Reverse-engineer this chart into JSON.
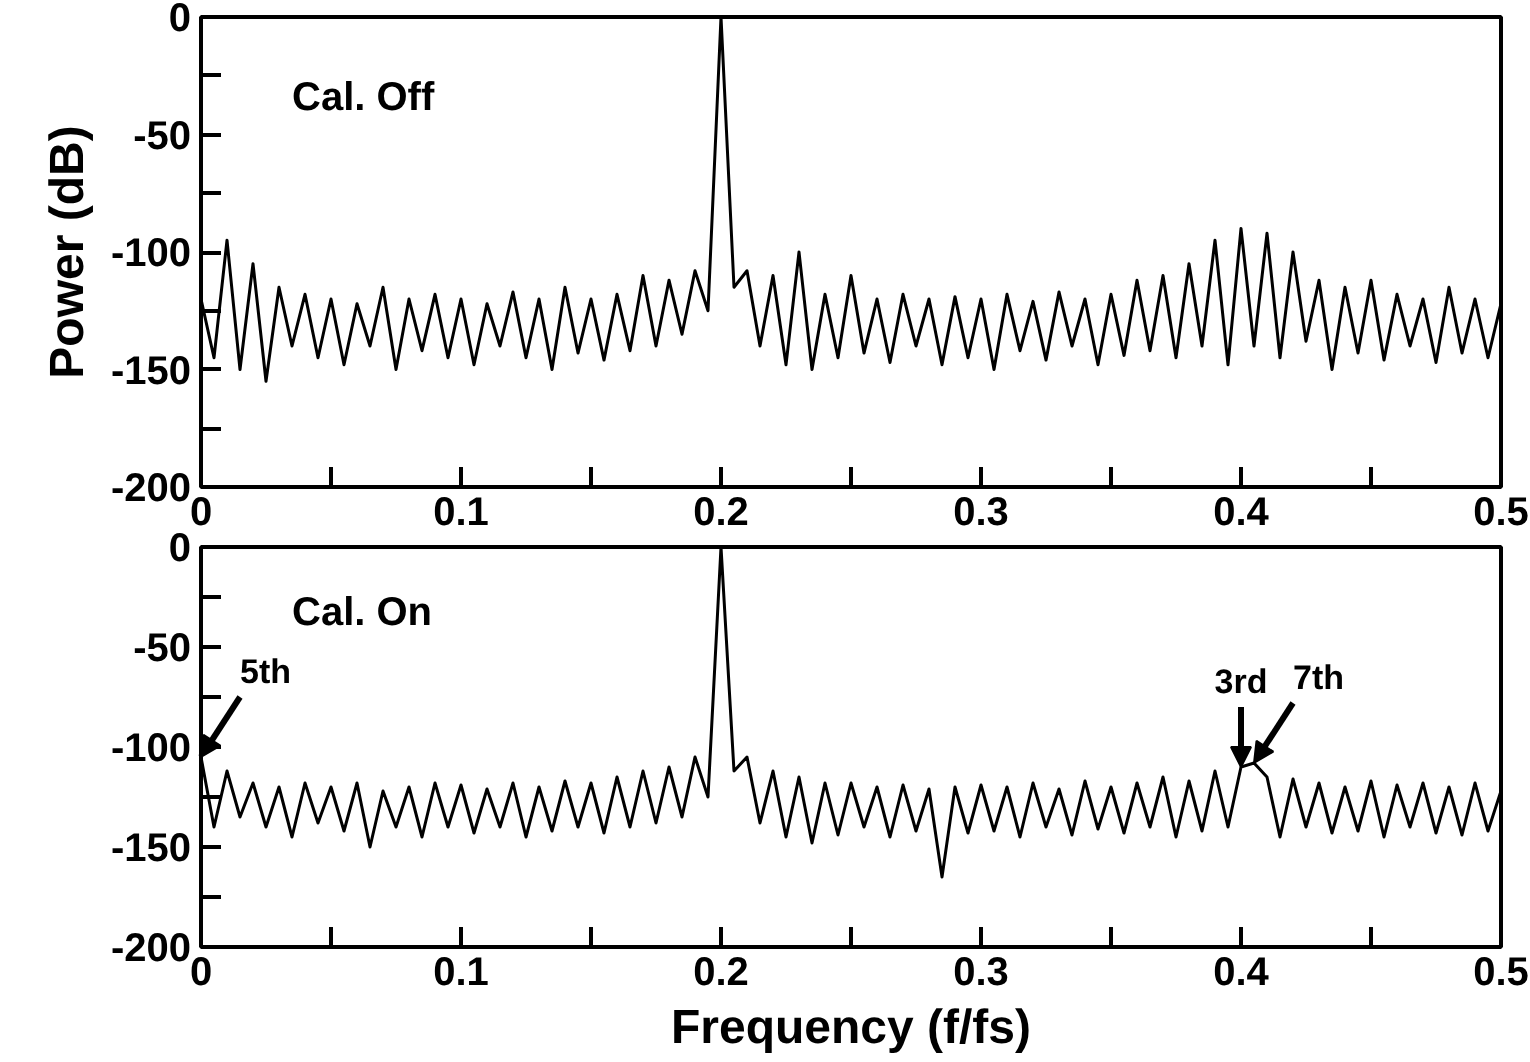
{
  "chart_data": [
    {
      "type": "line",
      "ylabel": "Power (dB)",
      "annotations": [
        "Cal. Off"
      ],
      "xlim": [
        0,
        0.5
      ],
      "ylim": [
        -200,
        0
      ],
      "xticks": [
        0,
        {
          "value": 0.05,
          "label": null
        },
        0.1,
        {
          "value": 0.15,
          "label": null
        },
        0.2,
        {
          "value": 0.25,
          "label": null
        },
        0.3,
        {
          "value": 0.35,
          "label": null
        },
        0.4,
        {
          "value": 0.45,
          "label": null
        },
        0.5
      ],
      "yticks": [
        -200,
        {
          "value": -175,
          "label": null
        },
        -150,
        {
          "value": -125,
          "label": null
        },
        -100,
        {
          "value": -75,
          "label": null
        },
        -50,
        {
          "value": -25,
          "label": null
        },
        0
      ],
      "grid": false,
      "marker": "none",
      "line_style": "solid",
      "series": [
        {
          "color": "#000000",
          "x": [
            0,
            0.005,
            0.01,
            0.015,
            0.02,
            0.025,
            0.03,
            0.035,
            0.04,
            0.045,
            0.05,
            0.055,
            0.06,
            0.065,
            0.07,
            0.075,
            0.08,
            0.085,
            0.09,
            0.095,
            0.1,
            0.105,
            0.11,
            0.115,
            0.12,
            0.125,
            0.13,
            0.135,
            0.14,
            0.145,
            0.15,
            0.155,
            0.16,
            0.165,
            0.17,
            0.175,
            0.18,
            0.185,
            0.19,
            0.195,
            0.2,
            0.205,
            0.21,
            0.215,
            0.22,
            0.225,
            0.23,
            0.235,
            0.24,
            0.245,
            0.25,
            0.255,
            0.26,
            0.265,
            0.27,
            0.275,
            0.28,
            0.285,
            0.29,
            0.295,
            0.3,
            0.305,
            0.31,
            0.315,
            0.32,
            0.325,
            0.33,
            0.335,
            0.34,
            0.345,
            0.35,
            0.355,
            0.36,
            0.365,
            0.37,
            0.375,
            0.38,
            0.385,
            0.39,
            0.395,
            0.4,
            0.405,
            0.41,
            0.415,
            0.42,
            0.425,
            0.43,
            0.435,
            0.44,
            0.445,
            0.45,
            0.455,
            0.46,
            0.465,
            0.47,
            0.475,
            0.48,
            0.485,
            0.49,
            0.495,
            0.5
          ],
          "values": [
            -120,
            -145,
            -95,
            -150,
            -105,
            -155,
            -115,
            -140,
            -118,
            -145,
            -120,
            -148,
            -122,
            -140,
            -115,
            -150,
            -120,
            -142,
            -118,
            -145,
            -120,
            -148,
            -122,
            -140,
            -117,
            -145,
            -120,
            -150,
            -115,
            -143,
            -120,
            -146,
            -118,
            -142,
            -110,
            -140,
            -112,
            -135,
            -108,
            -125,
            0,
            -115,
            -108,
            -140,
            -110,
            -148,
            -100,
            -150,
            -118,
            -145,
            -110,
            -143,
            -120,
            -147,
            -118,
            -140,
            -120,
            -148,
            -119,
            -145,
            -120,
            -150,
            -118,
            -142,
            -121,
            -146,
            -117,
            -140,
            -120,
            -148,
            -118,
            -144,
            -112,
            -142,
            -110,
            -145,
            -105,
            -140,
            -95,
            -148,
            -90,
            -140,
            -92,
            -145,
            -100,
            -138,
            -112,
            -150,
            -115,
            -143,
            -112,
            -146,
            -118,
            -140,
            -120,
            -147,
            -115,
            -143,
            -120,
            -145,
            -122
          ]
        }
      ]
    },
    {
      "type": "line",
      "xlabel": "Frequency (f/fs)",
      "annotations": [
        "Cal. On",
        {
          "text": "5th",
          "x": 0,
          "y": -105
        },
        {
          "text": "3rd",
          "x": 0.4,
          "y": -110
        },
        {
          "text": "7th",
          "x": 0.405,
          "y": -108
        }
      ],
      "xlim": [
        0,
        0.5
      ],
      "ylim": [
        -200,
        0
      ],
      "xticks": [
        0,
        {
          "value": 0.05,
          "label": null
        },
        0.1,
        {
          "value": 0.15,
          "label": null
        },
        0.2,
        {
          "value": 0.25,
          "label": null
        },
        0.3,
        {
          "value": 0.35,
          "label": null
        },
        0.4,
        {
          "value": 0.45,
          "label": null
        },
        0.5
      ],
      "yticks": [
        -200,
        {
          "value": -175,
          "label": null
        },
        -150,
        {
          "value": -125,
          "label": null
        },
        -100,
        {
          "value": -75,
          "label": null
        },
        -50,
        {
          "value": -25,
          "label": null
        },
        0
      ],
      "grid": false,
      "marker": "none",
      "line_style": "solid",
      "series": [
        {
          "color": "#000000",
          "x": [
            0,
            0.005,
            0.01,
            0.015,
            0.02,
            0.025,
            0.03,
            0.035,
            0.04,
            0.045,
            0.05,
            0.055,
            0.06,
            0.065,
            0.07,
            0.075,
            0.08,
            0.085,
            0.09,
            0.095,
            0.1,
            0.105,
            0.11,
            0.115,
            0.12,
            0.125,
            0.13,
            0.135,
            0.14,
            0.145,
            0.15,
            0.155,
            0.16,
            0.165,
            0.17,
            0.175,
            0.18,
            0.185,
            0.19,
            0.195,
            0.2,
            0.205,
            0.21,
            0.215,
            0.22,
            0.225,
            0.23,
            0.235,
            0.24,
            0.245,
            0.25,
            0.255,
            0.26,
            0.265,
            0.27,
            0.275,
            0.28,
            0.285,
            0.29,
            0.295,
            0.3,
            0.305,
            0.31,
            0.315,
            0.32,
            0.325,
            0.33,
            0.335,
            0.34,
            0.345,
            0.35,
            0.355,
            0.36,
            0.365,
            0.37,
            0.375,
            0.38,
            0.385,
            0.39,
            0.395,
            0.4,
            0.405,
            0.41,
            0.415,
            0.42,
            0.425,
            0.43,
            0.435,
            0.44,
            0.445,
            0.45,
            0.455,
            0.46,
            0.465,
            0.47,
            0.475,
            0.48,
            0.485,
            0.49,
            0.495,
            0.5
          ],
          "values": [
            -105,
            -140,
            -112,
            -135,
            -118,
            -140,
            -120,
            -145,
            -118,
            -138,
            -120,
            -142,
            -118,
            -150,
            -122,
            -140,
            -120,
            -145,
            -118,
            -140,
            -119,
            -143,
            -121,
            -140,
            -118,
            -145,
            -120,
            -142,
            -117,
            -140,
            -118,
            -143,
            -115,
            -140,
            -112,
            -138,
            -110,
            -135,
            -105,
            -125,
            0,
            -112,
            -105,
            -138,
            -112,
            -145,
            -115,
            -148,
            -118,
            -144,
            -118,
            -140,
            -120,
            -145,
            -119,
            -142,
            -121,
            -165,
            -120,
            -143,
            -119,
            -142,
            -120,
            -145,
            -118,
            -140,
            -121,
            -144,
            -117,
            -141,
            -120,
            -143,
            -118,
            -140,
            -115,
            -145,
            -117,
            -142,
            -112,
            -140,
            -110,
            -108,
            -115,
            -145,
            -116,
            -140,
            -118,
            -143,
            -120,
            -142,
            -117,
            -145,
            -119,
            -140,
            -118,
            -143,
            -120,
            -144,
            -118,
            -142,
            -122
          ]
        }
      ]
    }
  ]
}
